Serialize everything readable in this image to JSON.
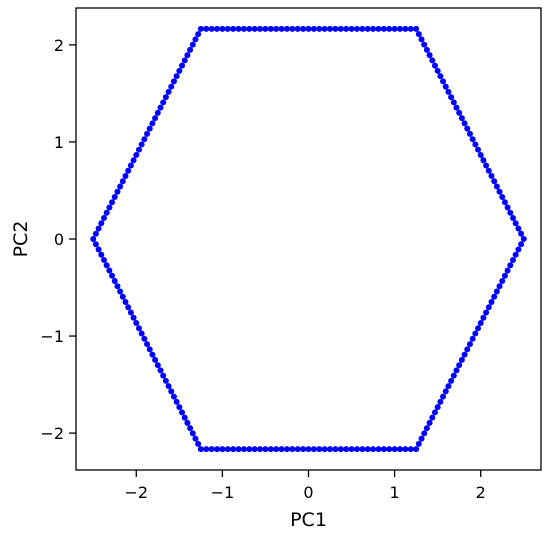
{
  "chart_data": {
    "type": "scatter",
    "title": "",
    "xlabel": "PC1",
    "ylabel": "PC2",
    "xlim": [
      -2.7,
      2.7
    ],
    "ylim": [
      -2.38,
      2.38
    ],
    "grid": false,
    "marker_color": "#0000ff",
    "x_ticks": [
      {
        "value": -2,
        "label": "−2"
      },
      {
        "value": -1,
        "label": "−1"
      },
      {
        "value": 0,
        "label": "0"
      },
      {
        "value": 1,
        "label": "1"
      },
      {
        "value": 2,
        "label": "2"
      }
    ],
    "y_ticks": [
      {
        "value": 2,
        "label": "2"
      },
      {
        "value": 1,
        "label": "1"
      },
      {
        "value": 0,
        "label": "0"
      },
      {
        "value": -1,
        "label": "−1"
      },
      {
        "value": -2,
        "label": "−2"
      }
    ],
    "series": [
      {
        "shape": "hexagon",
        "vertices": [
          [
            2.5,
            0
          ],
          [
            1.25,
            2.165
          ],
          [
            -1.25,
            2.165
          ],
          [
            -2.5,
            0
          ],
          [
            -1.25,
            -2.165
          ],
          [
            1.25,
            -2.165
          ]
        ],
        "points_per_edge": 40
      }
    ]
  }
}
